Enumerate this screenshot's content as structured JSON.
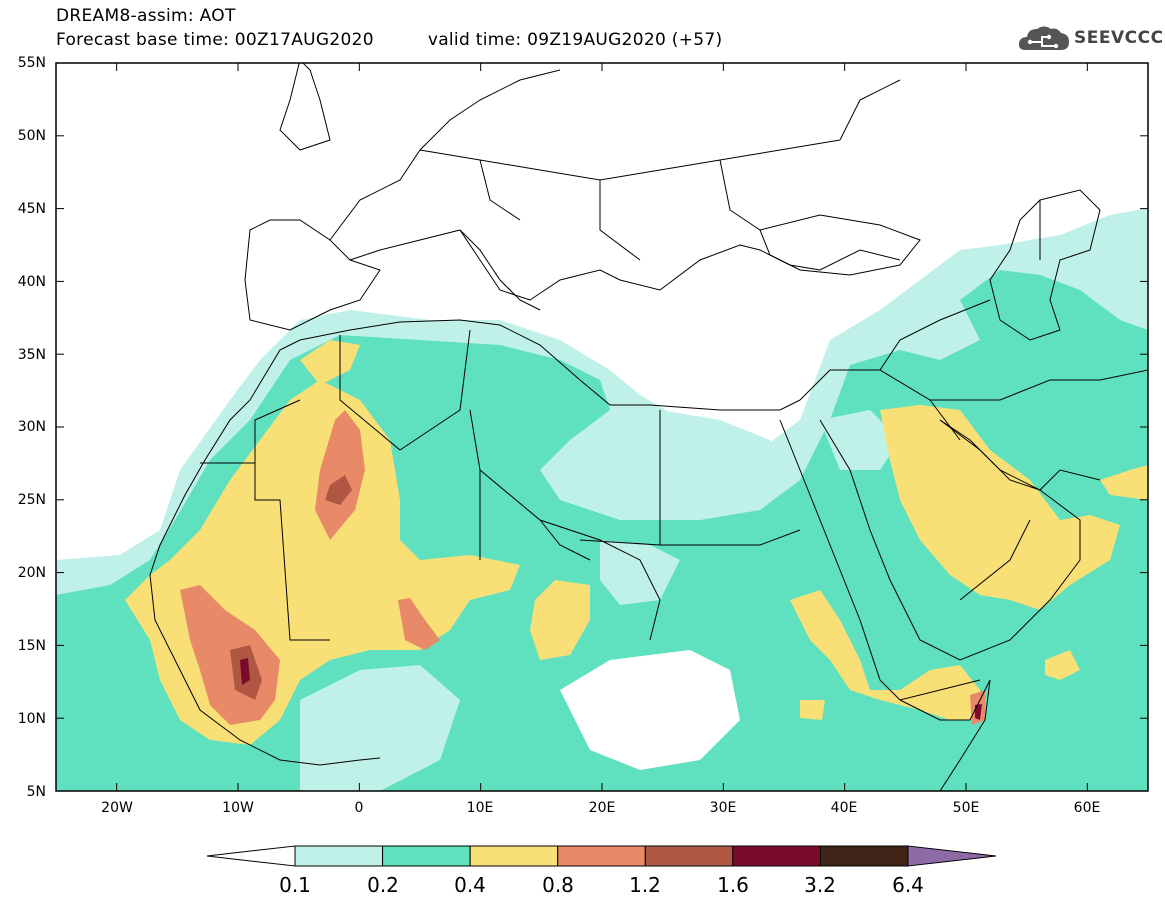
{
  "header": {
    "title_line1": "DREAM8-assim: AOT",
    "base_time": "Forecast base time: 00Z17AUG2020",
    "valid_time": "valid time: 09Z19AUG2020 (+57)"
  },
  "logo": {
    "text": "SEEVCCC",
    "icon": "cloud-icon"
  },
  "map": {
    "projection": "lat-lon",
    "lon_range": [
      -25,
      65
    ],
    "lat_range": [
      5,
      55
    ],
    "lat_labels": [
      "55N",
      "50N",
      "45N",
      "40N",
      "35N",
      "30N",
      "25N",
      "20N",
      "15N",
      "10N",
      "5N"
    ],
    "lon_labels": [
      "20W",
      "10W",
      "0",
      "10E",
      "20E",
      "30E",
      "40E",
      "50E",
      "60E"
    ],
    "background_color": "#ffffff",
    "border_color": "#000000"
  },
  "colorbar": {
    "labels": [
      "0.1",
      "0.2",
      "0.4",
      "0.8",
      "1.2",
      "1.6",
      "3.2",
      "6.4"
    ],
    "colors": [
      "#ffffff",
      "#bff1e8",
      "#5fe0be",
      "#f8e077",
      "#e88a68",
      "#b05744",
      "#7b0b2b",
      "#3e2316",
      "#8e6aa6"
    ]
  }
}
